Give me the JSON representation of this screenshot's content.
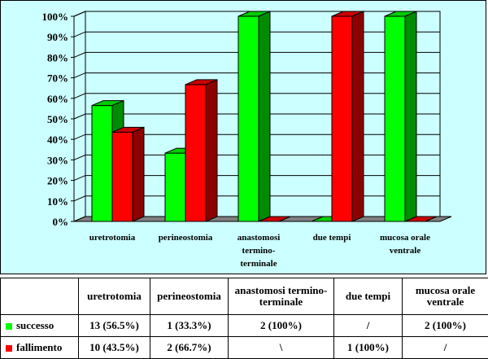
{
  "colors": {
    "panel_bg": "#ccffff",
    "successo": "#00ff00",
    "fallimento": "#ff0000",
    "floor": "#808080"
  },
  "chart_data": {
    "type": "bar",
    "three_d": true,
    "categories": [
      "uretrotomia",
      "perineostomia",
      "anastomosi termino-terminale",
      "due tempi",
      "mucosa orale ventrale"
    ],
    "category_lines": [
      [
        "uretrotomia"
      ],
      [
        "perineostomia"
      ],
      [
        "anastomosi",
        "termino-",
        "terminale"
      ],
      [
        "due tempi"
      ],
      [
        "mucosa orale",
        "ventrale"
      ]
    ],
    "series": [
      {
        "name": "successo",
        "color": "#00ff00",
        "values": [
          56.5,
          33.3,
          100,
          0,
          100
        ]
      },
      {
        "name": "fallimento",
        "color": "#ff0000",
        "values": [
          43.5,
          66.7,
          0,
          100,
          0
        ]
      }
    ],
    "ylim": [
      0,
      100
    ],
    "yticks": [
      "0%",
      "10%",
      "20%",
      "30%",
      "40%",
      "50%",
      "60%",
      "70%",
      "80%",
      "90%",
      "100%"
    ],
    "grid": true,
    "title": "",
    "xlabel": "",
    "ylabel": ""
  },
  "table": {
    "headers": [
      "",
      "uretrotomia",
      "perineostomia",
      "anastomosi termino-terminale",
      "due tempi",
      "mucosa orale ventrale"
    ],
    "rows": [
      {
        "label": "successo",
        "color": "#00ff00",
        "cells": [
          "13 (56.5%)",
          "1 (33.3%)",
          "2 (100%)",
          "/",
          "2 (100%)"
        ]
      },
      {
        "label": "fallimento",
        "color": "#ff0000",
        "cells": [
          "10 (43.5%)",
          "2 (66.7%)",
          "\\",
          "1 (100%)",
          "/"
        ]
      }
    ]
  }
}
